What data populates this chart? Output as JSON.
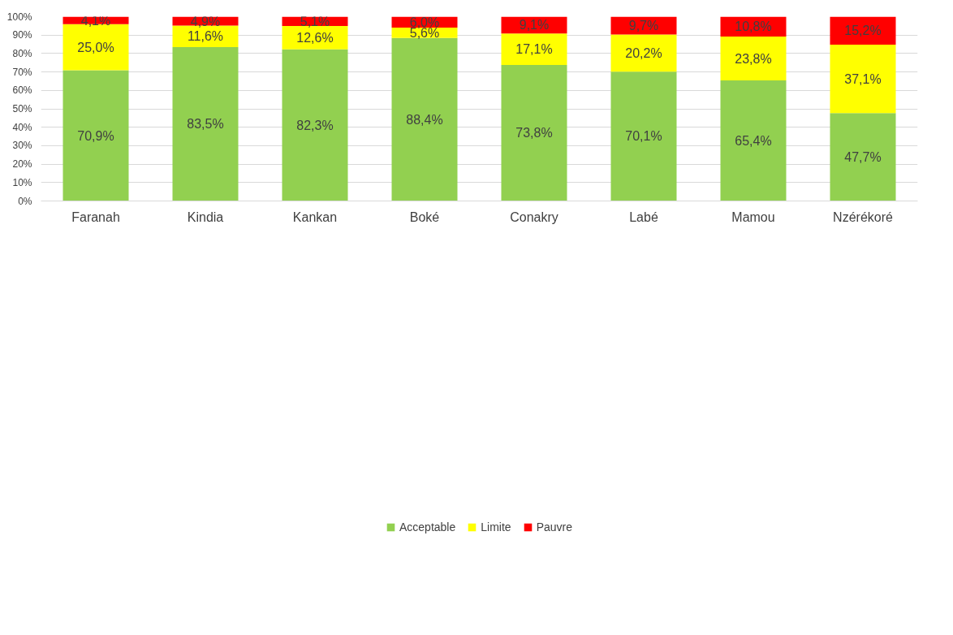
{
  "chart_data": {
    "type": "bar",
    "stacked": true,
    "categories": [
      "Faranah",
      "Kindia",
      "Kankan",
      "Boké",
      "Conakry",
      "Labé",
      "Mamou",
      "Nzérékoré"
    ],
    "series": [
      {
        "name": "Acceptable",
        "color": "#92d050",
        "values": [
          70.9,
          83.5,
          82.3,
          88.4,
          73.8,
          70.1,
          65.4,
          47.7
        ],
        "value_labels": [
          "70,9%",
          "83,5%",
          "82,3%",
          "88,4%",
          "73,8%",
          "70,1%",
          "65,4%",
          "47,7%"
        ]
      },
      {
        "name": "Limite",
        "color": "#ffff00",
        "values": [
          25.0,
          11.6,
          12.6,
          5.6,
          17.1,
          20.2,
          23.8,
          37.1
        ],
        "value_labels": [
          "25,0%",
          "11,6%",
          "12,6%",
          "5,6%",
          "17,1%",
          "20,2%",
          "23,8%",
          "37,1%"
        ]
      },
      {
        "name": "Pauvre",
        "color": "#ff0000",
        "values": [
          4.1,
          4.9,
          5.1,
          6.0,
          9.1,
          9.7,
          10.8,
          15.2
        ],
        "value_labels": [
          "4,1%",
          "4,9%",
          "5,1%",
          "6,0%",
          "9,1%",
          "9,7%",
          "10,8%",
          "15,2%"
        ]
      }
    ],
    "ylim": [
      0,
      100
    ],
    "yticks": [
      {
        "value": 0,
        "label": "0%"
      },
      {
        "value": 10,
        "label": "10%"
      },
      {
        "value": 20,
        "label": "20%"
      },
      {
        "value": 30,
        "label": "30%"
      },
      {
        "value": 40,
        "label": "40%"
      },
      {
        "value": 50,
        "label": "50%"
      },
      {
        "value": 60,
        "label": "60%"
      },
      {
        "value": 70,
        "label": "70%"
      },
      {
        "value": 80,
        "label": "80%"
      },
      {
        "value": 90,
        "label": "90%"
      },
      {
        "value": 100,
        "label": "100%"
      }
    ],
    "grid": "y",
    "legend": "bottom"
  }
}
